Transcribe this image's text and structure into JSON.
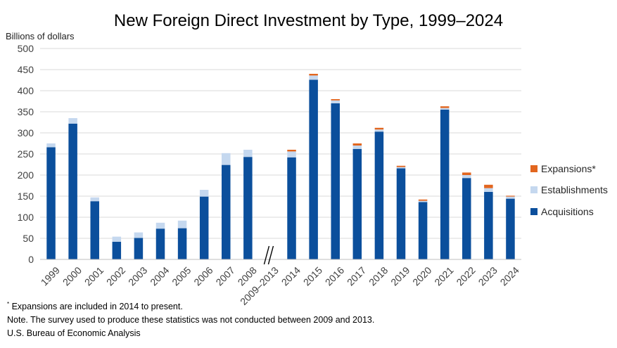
{
  "chart_data": {
    "type": "bar",
    "stacked": true,
    "title": "New Foreign Direct Investment by Type, 1999–2024",
    "ylabel": "Billions of dollars",
    "xlabel": "",
    "ylim": [
      0,
      500
    ],
    "yticks": [
      0,
      50,
      100,
      150,
      200,
      250,
      300,
      350,
      400,
      450,
      500
    ],
    "grid": true,
    "legend_position": "right",
    "categories": [
      "1999",
      "2000",
      "2001",
      "2002",
      "2003",
      "2004",
      "2005",
      "2006",
      "2007",
      "2008",
      "2009–2013",
      "2014",
      "2015",
      "2016",
      "2017",
      "2018",
      "2019",
      "2020",
      "2021",
      "2022",
      "2023",
      "2024"
    ],
    "break_category": "2009–2013",
    "series": [
      {
        "name": "Acquisitions",
        "color": "#0b4f9c",
        "values": [
          266,
          322,
          138,
          42,
          51,
          73,
          74,
          149,
          224,
          243,
          null,
          242,
          426,
          370,
          262,
          303,
          216,
          136,
          355,
          193,
          160,
          144
        ]
      },
      {
        "name": "Establishments",
        "color": "#c5d8ef",
        "values": [
          9,
          13,
          9,
          12,
          13,
          14,
          18,
          16,
          28,
          17,
          null,
          14,
          10,
          7,
          8,
          5,
          3,
          3,
          4,
          7,
          9,
          5
        ]
      },
      {
        "name": "Expansions*",
        "color": "#e2661f",
        "values": [
          null,
          null,
          null,
          null,
          null,
          null,
          null,
          null,
          null,
          null,
          null,
          4,
          4,
          3,
          5,
          4,
          3,
          3,
          4,
          6,
          8,
          2
        ]
      }
    ]
  },
  "legend": [
    {
      "label": "Expansions*",
      "color": "#e2661f"
    },
    {
      "label": "Establishments",
      "color": "#c5d8ef"
    },
    {
      "label": "Acquisitions",
      "color": "#0b4f9c"
    }
  ],
  "footnotes": {
    "expansions_marker": "*",
    "expansions_text": " Expansions are included in 2014 to present.",
    "note": "Note. The survey used to produce these statistics was not conducted between 2009 and 2013.",
    "source": "U.S. Bureau of Economic Analysis"
  }
}
